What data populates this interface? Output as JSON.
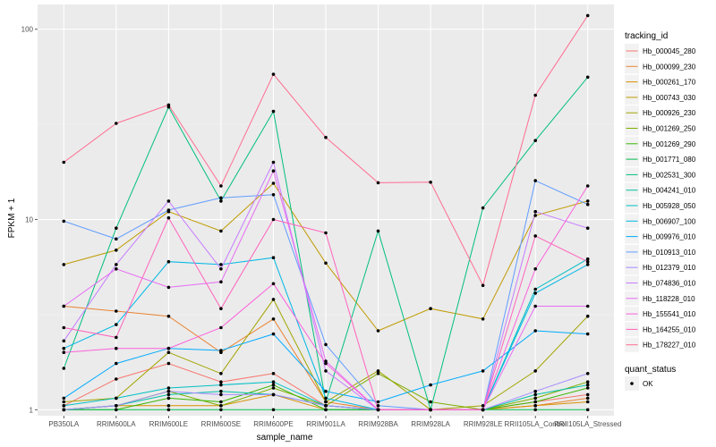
{
  "chart_data": {
    "type": "line",
    "xlabel": "sample_name",
    "ylabel": "FPKM + 1",
    "y_scale": "log10",
    "ylim": [
      0.93,
      135
    ],
    "y_ticks": [
      1,
      10,
      100
    ],
    "y_tick_labels": [
      "1",
      "10",
      "100"
    ],
    "categories": [
      "PB350LA",
      "RRIM600LA",
      "RRIM600LE",
      "RRIM600SE",
      "RRIM600PE",
      "RRIM901LA",
      "RRIM928BA",
      "RRIM928LA",
      "RRIM928LE",
      "RRII105LA_Control",
      "RRII105LA_Stressed"
    ],
    "legend": {
      "title": "tracking_id",
      "position": "right",
      "shape_title": "quant_status",
      "shape_label": "OK"
    },
    "grid": true,
    "series": [
      {
        "name": "Hb_000045_280",
        "color": "#F8766D",
        "values": [
          1.05,
          1.45,
          1.75,
          1.4,
          1.55,
          1.05,
          1.0,
          1.0,
          1.0,
          1.1,
          1.2
        ]
      },
      {
        "name": "Hb_000099_230",
        "color": "#EA8331",
        "values": [
          3.5,
          3.3,
          3.1,
          2.0,
          3.0,
          1.1,
          1.0,
          1.0,
          1.0,
          1.05,
          1.15
        ]
      },
      {
        "name": "Hb_000261_170",
        "color": "#D89000",
        "values": [
          1.0,
          1.05,
          1.05,
          1.05,
          1.2,
          1.0,
          1.0,
          1.0,
          1.0,
          1.05,
          1.1
        ]
      },
      {
        "name": "Hb_000743_030",
        "color": "#C09B00",
        "values": [
          5.8,
          6.9,
          11.0,
          8.7,
          15.5,
          5.9,
          2.6,
          3.4,
          3.0,
          10.5,
          12.5
        ]
      },
      {
        "name": "Hb_000926_230",
        "color": "#A3A500",
        "values": [
          1.1,
          1.15,
          2.0,
          1.55,
          3.8,
          1.1,
          1.6,
          1.0,
          1.05,
          1.6,
          3.1
        ]
      },
      {
        "name": "Hb_001269_250",
        "color": "#7CAE00",
        "values": [
          1.0,
          1.05,
          1.25,
          1.05,
          1.3,
          1.05,
          1.55,
          1.1,
          1.0,
          1.15,
          1.4
        ]
      },
      {
        "name": "Hb_001269_290",
        "color": "#39B600",
        "values": [
          1.0,
          1.0,
          1.15,
          1.1,
          1.35,
          1.0,
          1.0,
          1.0,
          1.0,
          1.1,
          1.3
        ]
      },
      {
        "name": "Hb_001771_080",
        "color": "#00BB4E",
        "values": [
          1.0,
          1.0,
          1.0,
          1.0,
          1.0,
          1.0,
          1.0,
          1.0,
          1.0,
          1.0,
          1.0
        ]
      },
      {
        "name": "Hb_002531_300",
        "color": "#00BF7D",
        "values": [
          1.65,
          9.0,
          39.0,
          12.5,
          37.0,
          1.1,
          8.7,
          1.0,
          11.5,
          26.0,
          56.0
        ]
      },
      {
        "name": "Hb_004241_010",
        "color": "#00C1A3",
        "values": [
          1.0,
          1.05,
          1.2,
          1.25,
          1.2,
          1.05,
          1.0,
          1.0,
          1.0,
          1.2,
          1.35
        ]
      },
      {
        "name": "Hb_005928_050",
        "color": "#00BFC4",
        "values": [
          1.05,
          1.15,
          1.3,
          1.35,
          1.4,
          1.05,
          1.0,
          1.0,
          1.0,
          4.3,
          6.2
        ]
      },
      {
        "name": "Hb_006907_100",
        "color": "#00B8E5",
        "values": [
          2.1,
          2.8,
          6.0,
          5.8,
          6.3,
          1.15,
          1.0,
          1.0,
          1.0,
          4.1,
          5.8
        ]
      },
      {
        "name": "Hb_009976_010",
        "color": "#00ABFD",
        "values": [
          1.15,
          1.75,
          2.1,
          2.05,
          2.5,
          1.25,
          1.1,
          1.35,
          1.6,
          2.6,
          2.5
        ]
      },
      {
        "name": "Hb_010913_010",
        "color": "#619CFF",
        "values": [
          9.8,
          7.9,
          11.2,
          13.0,
          13.5,
          2.2,
          1.05,
          1.0,
          1.0,
          16.0,
          12.0
        ]
      },
      {
        "name": "Hb_012379_010",
        "color": "#A58AFF",
        "values": [
          1.0,
          1.05,
          1.25,
          1.2,
          1.2,
          1.05,
          1.0,
          1.0,
          1.0,
          1.25,
          1.55
        ]
      },
      {
        "name": "Hb_074836_010",
        "color": "#C77CFF",
        "values": [
          2.3,
          5.8,
          12.5,
          5.5,
          20.0,
          1.6,
          1.0,
          1.0,
          1.0,
          11.0,
          9.0
        ]
      },
      {
        "name": "Hb_118228_010",
        "color": "#E76BF3",
        "values": [
          3.5,
          5.5,
          4.4,
          4.7,
          18.0,
          1.8,
          1.0,
          1.0,
          1.0,
          3.5,
          3.5
        ]
      },
      {
        "name": "Hb_155541_010",
        "color": "#FA62DB",
        "values": [
          2.0,
          2.1,
          2.1,
          2.7,
          4.6,
          1.75,
          1.0,
          1.0,
          1.0,
          5.5,
          15.0
        ]
      },
      {
        "name": "Hb_164255_010",
        "color": "#FF62BC",
        "values": [
          2.7,
          2.4,
          10.2,
          3.4,
          10.0,
          8.5,
          1.0,
          1.0,
          1.0,
          8.2,
          6.0
        ]
      },
      {
        "name": "Hb_178227_010",
        "color": "#FF6C91",
        "values": [
          20.0,
          32.0,
          40.0,
          15.0,
          58.0,
          27.0,
          15.6,
          15.7,
          4.5,
          45.0,
          118.0
        ]
      }
    ]
  }
}
